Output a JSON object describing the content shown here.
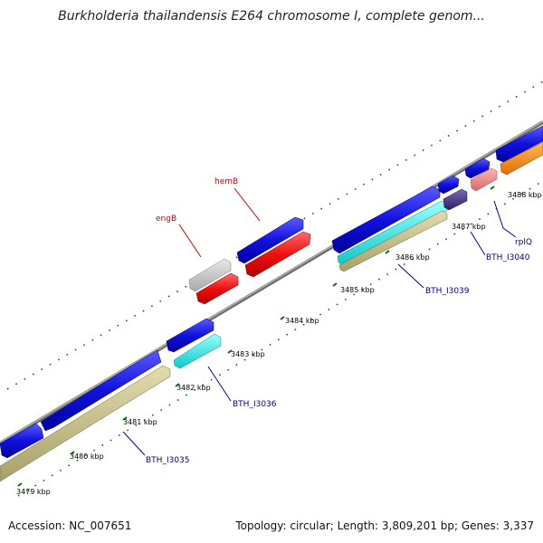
{
  "header": {
    "title": "Burkholderia thailandensis E264 chromosome I, complete genom..."
  },
  "footer": {
    "accession": "Accession: NC_007651",
    "stats": "Topology: circular; Length: 3,809,201 bp; Genes: 3,337"
  },
  "colors": {
    "backbone": "#888888",
    "ticks": "#0a6e0a",
    "gene_blue": "#1111dd",
    "gene_red": "#ee1111",
    "gene_gray": "#c8c8c8",
    "gene_cyan": "#22eeee",
    "gene_khaki": "#c8c08a",
    "gene_purple": "#4a3a8a",
    "gene_pink": "#f08c8c",
    "gene_orange": "#ff8c10"
  },
  "scale_labels": [
    "3479 kbp",
    "3480 kbp",
    "3481 kbp",
    "3482 kbp",
    "3483 kbp",
    "3484 kbp",
    "3485 kbp",
    "3486 kbp",
    "3487 kbp",
    "3488 kbp"
  ],
  "gene_labels": {
    "engB": "engB",
    "hemB": "hemB",
    "rplQ": "rplQ",
    "BTH_I3035": "BTH_I3035",
    "BTH_I3036": "BTH_I3036",
    "BTH_I3039": "BTH_I3039",
    "BTH_I3040": "BTH_I3040"
  }
}
